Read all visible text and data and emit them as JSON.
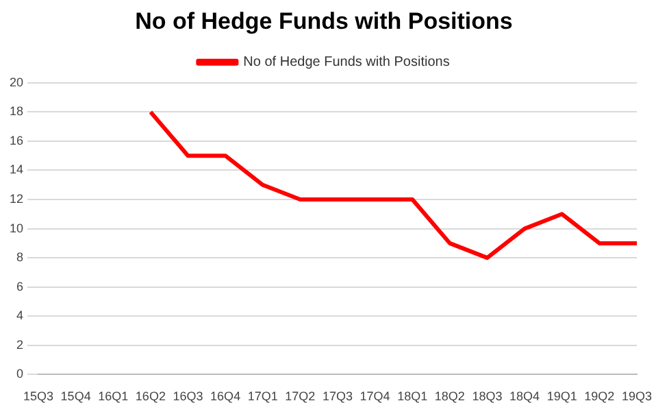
{
  "chart_data": {
    "type": "line",
    "title": "No of Hedge Funds with Positions",
    "categories": [
      "15Q3",
      "15Q4",
      "16Q1",
      "16Q2",
      "16Q3",
      "16Q4",
      "17Q1",
      "17Q2",
      "17Q3",
      "17Q4",
      "18Q1",
      "18Q2",
      "18Q3",
      "18Q4",
      "19Q1",
      "19Q2",
      "19Q3"
    ],
    "series": [
      {
        "name": "No of Hedge Funds with Positions",
        "color": "#ff0000",
        "values": [
          null,
          null,
          null,
          18,
          15,
          15,
          13,
          12,
          12,
          12,
          12,
          9,
          8,
          10,
          11,
          9,
          9
        ]
      }
    ],
    "ylim": [
      0,
      20
    ],
    "yticks": [
      0,
      2,
      4,
      6,
      8,
      10,
      12,
      14,
      16,
      18,
      20
    ],
    "grid": "y",
    "legend": "top",
    "marker": "none"
  }
}
